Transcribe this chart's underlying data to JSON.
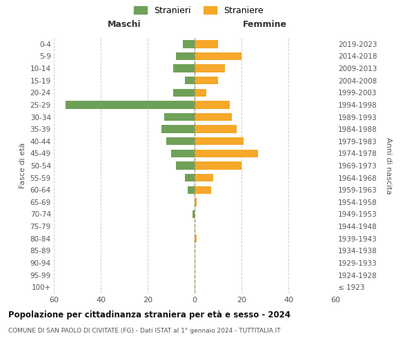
{
  "age_groups": [
    "100+",
    "95-99",
    "90-94",
    "85-89",
    "80-84",
    "75-79",
    "70-74",
    "65-69",
    "60-64",
    "55-59",
    "50-54",
    "45-49",
    "40-44",
    "35-39",
    "30-34",
    "25-29",
    "20-24",
    "15-19",
    "10-14",
    "5-9",
    "0-4"
  ],
  "birth_years": [
    "≤ 1923",
    "1924-1928",
    "1929-1933",
    "1934-1938",
    "1939-1943",
    "1944-1948",
    "1949-1953",
    "1954-1958",
    "1959-1963",
    "1964-1968",
    "1969-1973",
    "1974-1978",
    "1979-1983",
    "1984-1988",
    "1989-1993",
    "1994-1998",
    "1999-2003",
    "2004-2008",
    "2009-2013",
    "2014-2018",
    "2019-2023"
  ],
  "males": [
    0,
    0,
    0,
    0,
    0,
    0,
    1,
    0,
    3,
    4,
    8,
    10,
    12,
    14,
    13,
    55,
    9,
    4,
    9,
    8,
    5
  ],
  "females": [
    0,
    0,
    0,
    0,
    1,
    0,
    0,
    1,
    7,
    8,
    20,
    27,
    21,
    18,
    16,
    15,
    5,
    10,
    13,
    20,
    10
  ],
  "male_color": "#6fa058",
  "female_color": "#f5a82a",
  "title": "Popolazione per cittadinanza straniera per età e sesso - 2024",
  "subtitle": "COMUNE DI SAN PAOLO DI CIVITATE (FG) - Dati ISTAT al 1° gennaio 2024 - TUTTITALIA.IT",
  "xlabel_left": "Maschi",
  "xlabel_right": "Femmine",
  "ylabel_left": "Fasce di età",
  "ylabel_right": "Anni di nascita",
  "legend_male": "Stranieri",
  "legend_female": "Straniere",
  "xlim": 60,
  "background_color": "#ffffff",
  "grid_color": "#cccccc"
}
